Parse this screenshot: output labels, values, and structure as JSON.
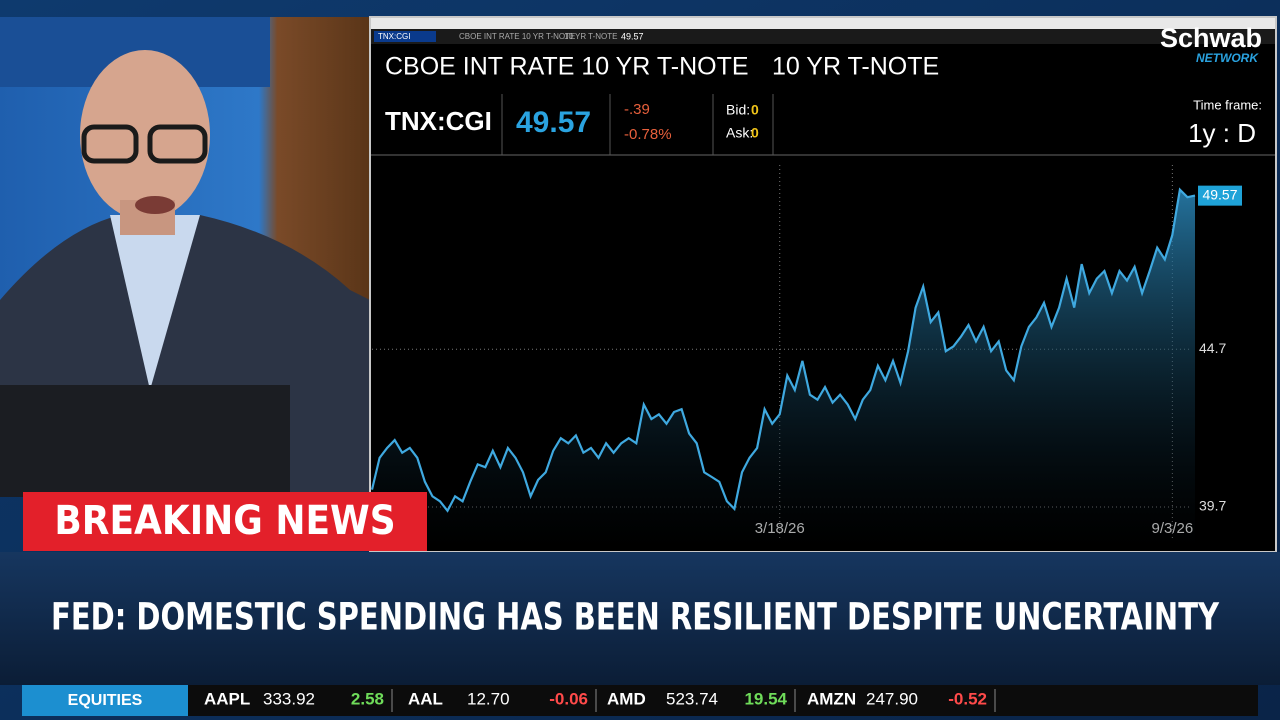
{
  "logo": {
    "name": "Schwab",
    "sub": "NETWORK"
  },
  "header": {
    "description": "CBOE INT RATE 10 YR T-NOTE",
    "short_name": "10 YR T-NOTE",
    "symbol": "TNX:CGI",
    "last": "49.57",
    "change": "-.39",
    "change_pct": "-0.78%",
    "bid_label": "Bid:",
    "bid": "0",
    "ask_label": "Ask:",
    "ask": "0",
    "timeframe_label": "Time frame:",
    "timeframe": "1y : D"
  },
  "chart_data": {
    "type": "area",
    "color": "#3fa9e0",
    "categories": [
      null,
      null,
      null,
      null,
      null,
      null,
      null,
      null,
      null,
      null,
      null,
      null,
      null,
      null,
      null,
      null,
      null,
      null,
      null,
      null,
      null,
      null,
      null,
      null,
      null,
      null,
      null,
      null,
      null,
      null,
      null,
      null,
      null,
      null,
      null,
      null,
      null,
      null,
      null,
      null,
      null,
      null,
      null,
      null,
      null,
      null,
      null,
      null,
      null,
      null,
      null,
      null,
      null,
      null,
      "3/18/26",
      null,
      null,
      null,
      null,
      null,
      null,
      null,
      null,
      null,
      null,
      null,
      null,
      null,
      null,
      null,
      null,
      null,
      null,
      null,
      null,
      null,
      null,
      null,
      null,
      null,
      null,
      null,
      null,
      null,
      null,
      null,
      null,
      null,
      null,
      null,
      null,
      null,
      null,
      null,
      null,
      null,
      null,
      null,
      null,
      null,
      null,
      null,
      null,
      null,
      null,
      null,
      "9/3/26",
      null,
      null,
      null
    ],
    "values": [
      40.25,
      41.26,
      41.57,
      41.82,
      41.42,
      41.57,
      41.26,
      40.5,
      40.04,
      39.88,
      39.58,
      40.04,
      39.88,
      40.5,
      41.05,
      40.96,
      41.48,
      40.96,
      41.57,
      41.26,
      40.8,
      40.04,
      40.56,
      40.8,
      41.48,
      41.88,
      41.72,
      41.97,
      41.42,
      41.57,
      41.26,
      41.72,
      41.42,
      41.72,
      41.88,
      41.72,
      42.95,
      42.49,
      42.64,
      42.34,
      42.71,
      42.8,
      42.03,
      41.72,
      40.8,
      40.65,
      40.5,
      39.88,
      39.64,
      40.8,
      41.26,
      41.57,
      42.8,
      42.34,
      42.64,
      43.87,
      43.41,
      44.33,
      43.26,
      43.1,
      43.5,
      43.01,
      43.26,
      42.95,
      42.49,
      43.1,
      43.41,
      44.18,
      43.72,
      44.33,
      43.63,
      44.64,
      46.02,
      46.69,
      45.56,
      45.87,
      44.64,
      44.79,
      45.1,
      45.47,
      44.95,
      45.41,
      44.64,
      44.95,
      44.03,
      43.72,
      44.79,
      45.41,
      45.71,
      46.17,
      45.41,
      46.02,
      46.94,
      46.02,
      47.4,
      46.48,
      46.94,
      47.18,
      46.48,
      47.18,
      46.88,
      47.31,
      46.48,
      47.18,
      47.92,
      47.55,
      48.32,
      49.76,
      49.52,
      49.57
    ],
    "ylim": [
      38.4,
      50.7
    ],
    "yticks": [
      39.7,
      44.7
    ],
    "grid": true
  },
  "banner": {
    "label": "BREAKING NEWS",
    "headline": "FED: DOMESTIC SPENDING HAS BEEN RESILIENT DESPITE UNCERTAINTY"
  },
  "ticker": {
    "section": "EQUITIES",
    "items": [
      {
        "symbol": "AAPL",
        "price": "333.92",
        "change": "2.58"
      },
      {
        "symbol": "AAL",
        "price": "12.70",
        "change": "-0.06"
      },
      {
        "symbol": "AMD",
        "price": "523.74",
        "change": "19.54"
      },
      {
        "symbol": "AMZN",
        "price": "247.90",
        "change": "-0.52"
      }
    ]
  }
}
